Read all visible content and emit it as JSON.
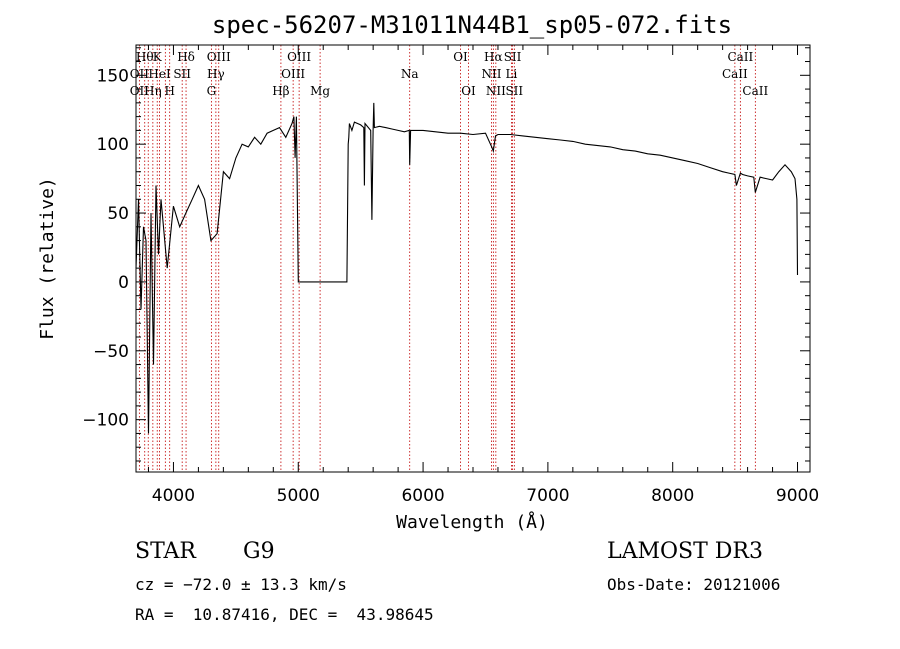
{
  "chart_data": {
    "type": "line",
    "title": "spec-56207-M31011N44B1_sp05-072.fits",
    "xlabel": "Wavelength (Å)",
    "ylabel": "Flux (relative)",
    "xlim": [
      3700,
      9100
    ],
    "ylim": [
      -138,
      172
    ],
    "x_ticks": [
      4000,
      5000,
      6000,
      7000,
      8000,
      9000
    ],
    "y_ticks": [
      -100,
      -50,
      0,
      50,
      100,
      150
    ],
    "y_tick_labels": [
      "−100",
      "−50",
      "0",
      "50",
      "100",
      "150"
    ],
    "line_color": "#000000",
    "marker_color": "#c00000",
    "spectral_lines": [
      {
        "wave": 3727,
        "labels": [
          "OII"
        ]
      },
      {
        "wave": 3770,
        "labels": [
          "Hθ"
        ]
      },
      {
        "wave": 3798,
        "labels": [
          "Hη"
        ]
      },
      {
        "wave": 3835,
        "labels": [
          "Hη"
        ]
      },
      {
        "wave": 3870,
        "labels": [
          "K"
        ]
      },
      {
        "wave": 3889,
        "labels": [
          "HeI"
        ]
      },
      {
        "wave": 3935,
        "labels": [
          "K"
        ]
      },
      {
        "wave": 3970,
        "labels": [
          "H"
        ]
      },
      {
        "wave": 4070,
        "labels": [
          "SII"
        ]
      },
      {
        "wave": 4101,
        "labels": [
          "Hδ"
        ]
      },
      {
        "wave": 4304,
        "labels": [
          "G"
        ]
      },
      {
        "wave": 4340,
        "labels": [
          "Hγ"
        ]
      },
      {
        "wave": 4363,
        "labels": [
          "OIII"
        ]
      },
      {
        "wave": 4861,
        "labels": [
          "Hβ"
        ]
      },
      {
        "wave": 4959,
        "labels": [
          "OIII"
        ]
      },
      {
        "wave": 5007,
        "labels": [
          "OIII"
        ]
      },
      {
        "wave": 5175,
        "labels": [
          "Mg"
        ]
      },
      {
        "wave": 5893,
        "labels": [
          "Na"
        ]
      },
      {
        "wave": 6300,
        "labels": [
          "OI"
        ]
      },
      {
        "wave": 6364,
        "labels": [
          "OI"
        ]
      },
      {
        "wave": 6548,
        "labels": [
          "NII"
        ]
      },
      {
        "wave": 6563,
        "labels": [
          "Hα"
        ]
      },
      {
        "wave": 6583,
        "labels": [
          "NII"
        ]
      },
      {
        "wave": 6708,
        "labels": [
          "Li"
        ]
      },
      {
        "wave": 6717,
        "labels": [
          "SII"
        ]
      },
      {
        "wave": 6731,
        "labels": [
          "SII"
        ]
      },
      {
        "wave": 8498,
        "labels": [
          "CaII"
        ]
      },
      {
        "wave": 8542,
        "labels": [
          "CaII"
        ]
      },
      {
        "wave": 8662,
        "labels": [
          "CaII"
        ]
      }
    ],
    "line_labels": [
      {
        "text": "Hθ",
        "wave": 3770,
        "row": 1
      },
      {
        "text": "K",
        "wave": 3870,
        "row": 1
      },
      {
        "text": "Hδ",
        "wave": 4101,
        "row": 1
      },
      {
        "text": "OIII",
        "wave": 4363,
        "row": 1
      },
      {
        "text": "OIII",
        "wave": 5007,
        "row": 1
      },
      {
        "text": "OI",
        "wave": 6300,
        "row": 1
      },
      {
        "text": "Hα",
        "wave": 6563,
        "row": 1
      },
      {
        "text": "SII",
        "wave": 6717,
        "row": 1
      },
      {
        "text": "CaII",
        "wave": 8542,
        "row": 1
      },
      {
        "text": "OII",
        "wave": 3727,
        "row": 2
      },
      {
        "text": "HeI",
        "wave": 3889,
        "row": 2
      },
      {
        "text": "SII",
        "wave": 4070,
        "row": 2
      },
      {
        "text": "Hγ",
        "wave": 4340,
        "row": 2
      },
      {
        "text": "OIII",
        "wave": 4959,
        "row": 2
      },
      {
        "text": "Na",
        "wave": 5893,
        "row": 2
      },
      {
        "text": "NII",
        "wave": 6548,
        "row": 2
      },
      {
        "text": "Li",
        "wave": 6708,
        "row": 2
      },
      {
        "text": "CaII",
        "wave": 8498,
        "row": 2
      },
      {
        "text": "OII",
        "wave": 3727,
        "row": 3
      },
      {
        "text": "Hη",
        "wave": 3835,
        "row": 3
      },
      {
        "text": "H",
        "wave": 3970,
        "row": 3
      },
      {
        "text": "G",
        "wave": 4304,
        "row": 3
      },
      {
        "text": "Hβ",
        "wave": 4861,
        "row": 3
      },
      {
        "text": "Mg",
        "wave": 5175,
        "row": 3
      },
      {
        "text": "OI",
        "wave": 6364,
        "row": 3
      },
      {
        "text": "NII",
        "wave": 6583,
        "row": 3
      },
      {
        "text": "SII",
        "wave": 6731,
        "row": 3
      },
      {
        "text": "CaII",
        "wave": 8662,
        "row": 3
      }
    ],
    "series": [
      {
        "name": "flux",
        "x": [
          3700,
          3720,
          3740,
          3760,
          3780,
          3800,
          3820,
          3840,
          3860,
          3880,
          3900,
          3950,
          4000,
          4050,
          4100,
          4150,
          4200,
          4250,
          4300,
          4350,
          4400,
          4450,
          4500,
          4550,
          4600,
          4650,
          4700,
          4750,
          4800,
          4850,
          4900,
          4950,
          4965,
          4975,
          4985,
          5000,
          5010,
          5100,
          5200,
          5300,
          5390,
          5400,
          5405,
          5410,
          5430,
          5450,
          5500,
          5525,
          5530,
          5535,
          5580,
          5590,
          5600,
          5605,
          5610,
          5650,
          5700,
          5750,
          5800,
          5850,
          5890,
          5893,
          5900,
          5950,
          6000,
          6100,
          6200,
          6300,
          6400,
          6500,
          6550,
          6563,
          6580,
          6600,
          6700,
          6800,
          6900,
          7000,
          7100,
          7200,
          7300,
          7400,
          7500,
          7600,
          7700,
          7800,
          7900,
          8000,
          8100,
          8200,
          8300,
          8400,
          8450,
          8498,
          8510,
          8542,
          8560,
          8600,
          8650,
          8662,
          8700,
          8750,
          8800,
          8850,
          8900,
          8950,
          8980,
          8995,
          9000
        ],
        "y": [
          10,
          60,
          -20,
          40,
          30,
          -110,
          50,
          -60,
          70,
          20,
          60,
          10,
          55,
          40,
          50,
          60,
          70,
          60,
          30,
          35,
          80,
          75,
          90,
          100,
          98,
          105,
          100,
          108,
          110,
          112,
          105,
          115,
          120,
          90,
          120,
          0,
          0,
          0,
          0,
          0,
          0,
          100,
          105,
          115,
          110,
          116,
          114,
          112,
          70,
          115,
          110,
          45,
          110,
          130,
          112,
          113,
          112,
          111,
          110,
          109,
          110,
          85,
          110,
          110,
          110,
          109,
          108,
          108,
          107,
          108,
          98,
          95,
          106,
          107,
          107,
          106,
          105,
          104,
          103,
          102,
          100,
          99,
          98,
          96,
          95,
          93,
          92,
          90,
          88,
          86,
          83,
          80,
          79,
          78,
          70,
          79,
          78,
          77,
          76,
          65,
          76,
          75,
          74,
          80,
          85,
          80,
          75,
          60,
          5
        ]
      }
    ]
  },
  "info": {
    "object_class": "STAR",
    "subclass": "G9",
    "survey": "LAMOST DR3",
    "cz": "cz = −72.0 ± 13.3 km/s",
    "obs_date": "Obs-Date: 20121006",
    "coords": "RA =  10.87416, DEC =  43.98645"
  }
}
